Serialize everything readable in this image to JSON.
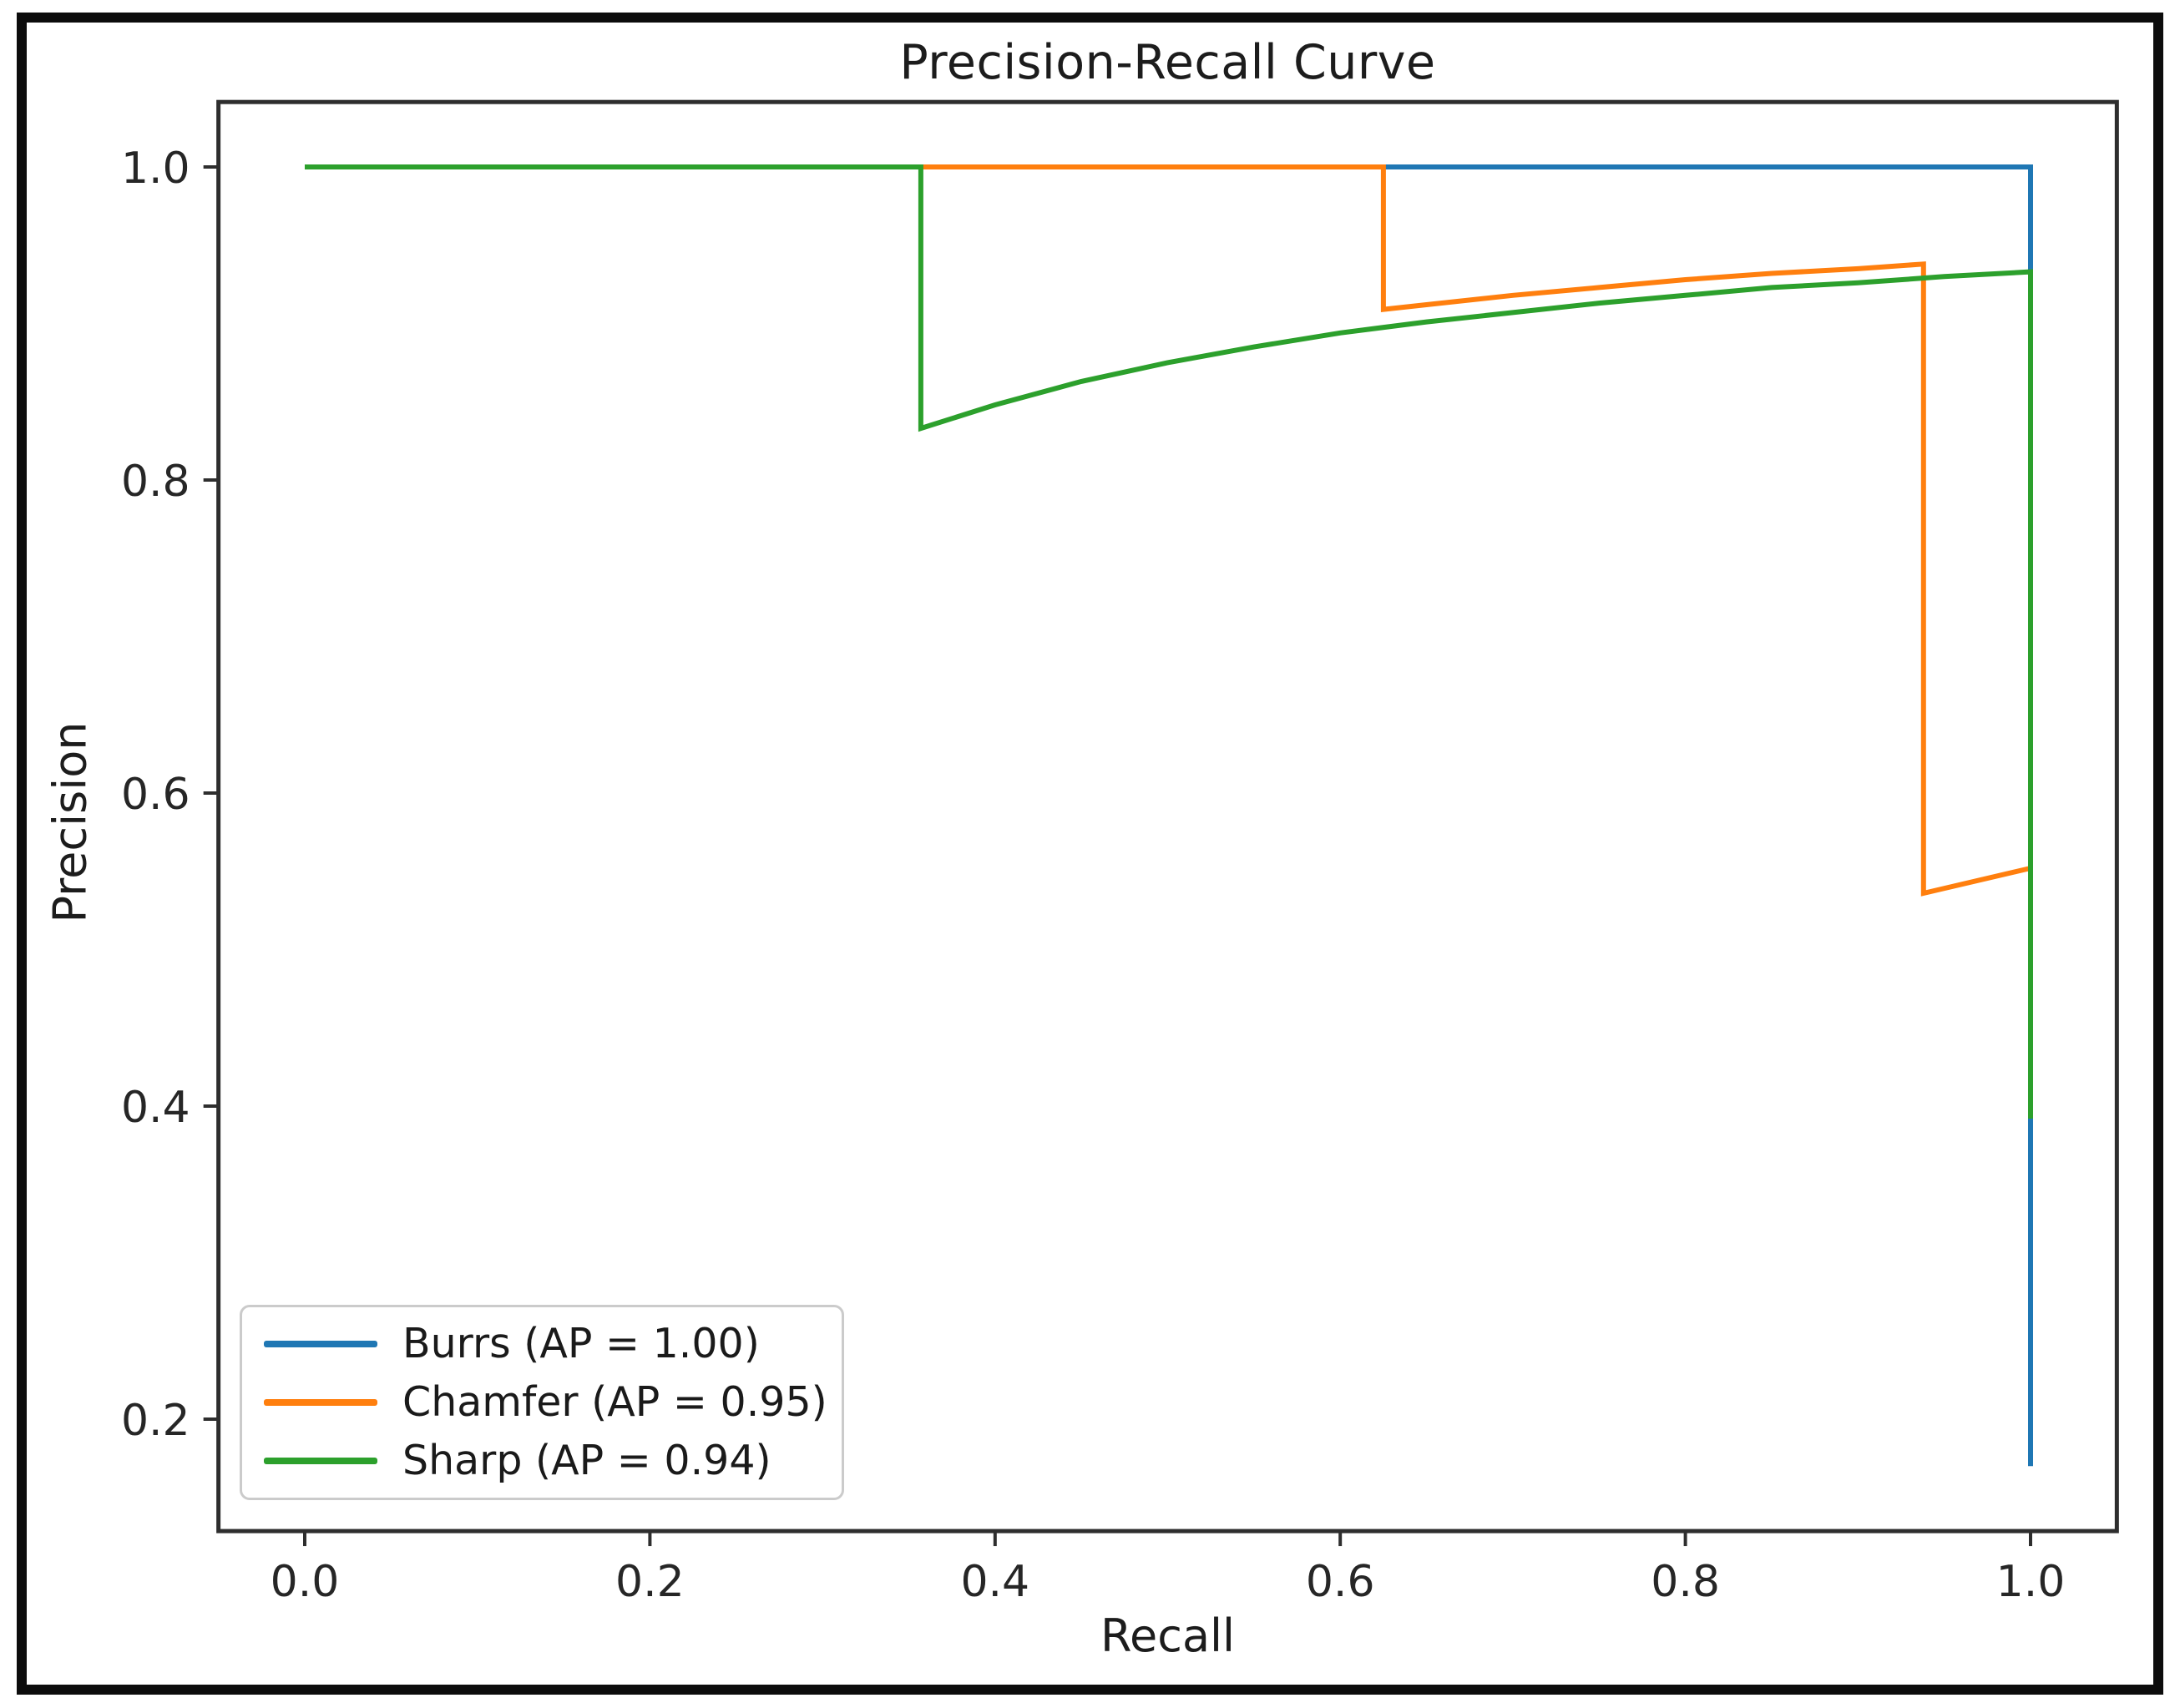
{
  "chart_data": {
    "type": "line",
    "title": "Precision-Recall Curve",
    "xlabel": "Recall",
    "ylabel": "Precision",
    "xlim": [
      -0.05,
      1.05
    ],
    "ylim": [
      0.1285,
      1.0415
    ],
    "grid": false,
    "legend": {
      "position": "lower left",
      "entries": [
        "Burrs (AP = 1.00)",
        "Chamfer (AP = 0.95)",
        "Sharp (AP = 0.94)"
      ]
    },
    "x_ticks": {
      "values": [
        0.0,
        0.2,
        0.4,
        0.6,
        0.8,
        1.0
      ],
      "labels": [
        "0.0",
        "0.2",
        "0.4",
        "0.6",
        "0.8",
        "1.0"
      ]
    },
    "y_ticks": {
      "values": [
        0.2,
        0.4,
        0.6,
        0.8,
        1.0
      ],
      "labels": [
        "0.2",
        "0.4",
        "0.6",
        "0.8",
        "1.0"
      ]
    },
    "series": [
      {
        "name": "Burrs (AP = 1.00)",
        "label": "Burrs",
        "ap": "1.00",
        "color": "#1f77b4",
        "points": [
          [
            0.0,
            1.0
          ],
          [
            1.0,
            1.0
          ],
          [
            1.0,
            0.17
          ]
        ]
      },
      {
        "name": "Chamfer (AP = 0.95)",
        "label": "Chamfer",
        "ap": "0.95",
        "color": "#ff7f0e",
        "points": [
          [
            0.0,
            1.0
          ],
          [
            0.625,
            1.0
          ],
          [
            0.625,
            0.909
          ],
          [
            0.65,
            0.912
          ],
          [
            0.7,
            0.918
          ],
          [
            0.75,
            0.923
          ],
          [
            0.8,
            0.928
          ],
          [
            0.85,
            0.932
          ],
          [
            0.9,
            0.935
          ],
          [
            0.938,
            0.938
          ],
          [
            0.938,
            0.536
          ],
          [
            1.0,
            0.552
          ]
        ]
      },
      {
        "name": "Sharp (AP = 0.94)",
        "label": "Sharp",
        "ap": "0.94",
        "color": "#2ca02c",
        "points": [
          [
            0.0,
            1.0
          ],
          [
            0.357,
            1.0
          ],
          [
            0.357,
            0.833
          ],
          [
            0.4,
            0.848
          ],
          [
            0.45,
            0.863
          ],
          [
            0.5,
            0.875
          ],
          [
            0.55,
            0.885
          ],
          [
            0.6,
            0.894
          ],
          [
            0.65,
            0.901
          ],
          [
            0.7,
            0.907
          ],
          [
            0.75,
            0.913
          ],
          [
            0.8,
            0.918
          ],
          [
            0.85,
            0.923
          ],
          [
            0.9,
            0.926
          ],
          [
            0.95,
            0.93
          ],
          [
            1.0,
            0.933
          ],
          [
            1.0,
            0.392
          ]
        ]
      }
    ]
  }
}
